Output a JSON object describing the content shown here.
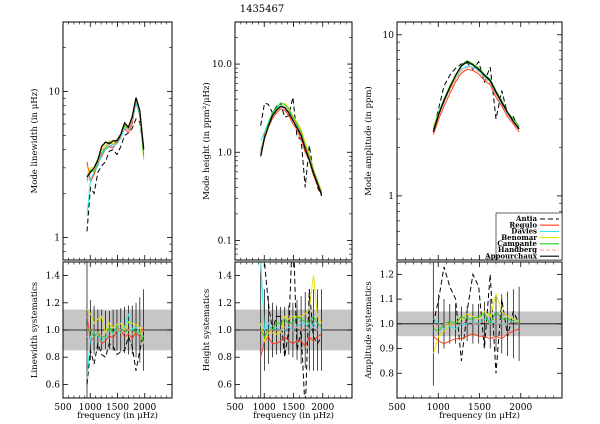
{
  "title": "1435467",
  "xlabel": "frequency (in μHz)",
  "x_ticks": [
    500,
    1000,
    1500,
    2000
  ],
  "colors": {
    "Antia": "#000000",
    "Regulo": "#ff3b1a",
    "Davies": "#33e5f0",
    "Benomar": "#e6e600",
    "Campante": "#22cc22",
    "Handberg": "#ff9a8a",
    "Appourchaux": "#000000"
  },
  "legend": [
    "Antia",
    "Regulo",
    "Davies",
    "Benomar",
    "Campante",
    "Handberg",
    "Appourchaux"
  ],
  "chart_data": [
    {
      "type": "line",
      "panel": "linewidth",
      "ylabel": "Mode linewidth (in μHz)",
      "yscale": "log",
      "xlim": [
        500,
        2500
      ],
      "ylim": [
        0.7,
        30
      ],
      "y_ticks": [
        1,
        10
      ],
      "x": [
        940,
        1005,
        1070,
        1140,
        1210,
        1280,
        1350,
        1420,
        1490,
        1560,
        1630,
        1700,
        1770,
        1840,
        1910,
        1980
      ],
      "series": [
        {
          "name": "Antia",
          "values": [
            1.1,
            2.2,
            2.0,
            2.8,
            3.1,
            3.3,
            3.9,
            4.0,
            3.7,
            4.2,
            5.0,
            5.2,
            5.6,
            6.5,
            6.2,
            3.9
          ]
        },
        {
          "name": "Regulo",
          "values": [
            3.3,
            2.4,
            2.7,
            3.2,
            3.6,
            4.0,
            4.2,
            4.1,
            4.5,
            4.9,
            5.6,
            5.2,
            6.0,
            8.6,
            6.8,
            4.2
          ]
        },
        {
          "name": "Davies",
          "values": [
            1.4,
            2.5,
            2.8,
            3.1,
            3.7,
            4.0,
            4.3,
            4.2,
            4.4,
            4.8,
            5.6,
            5.5,
            6.3,
            8.2,
            6.9,
            3.8
          ]
        },
        {
          "name": "Benomar",
          "values": [
            2.7,
            3.0,
            3.0,
            3.5,
            4.0,
            4.3,
            4.6,
            4.4,
            4.7,
            5.1,
            5.9,
            5.7,
            6.5,
            8.9,
            7.3,
            3.4
          ]
        },
        {
          "name": "Campante",
          "values": [
            2.5,
            2.9,
            2.8,
            3.3,
            3.8,
            4.1,
            4.5,
            4.3,
            4.6,
            5.0,
            5.8,
            5.6,
            6.4,
            8.7,
            7.1,
            3.6
          ]
        },
        {
          "name": "Handberg",
          "values": [
            2.4,
            2.8,
            2.9,
            3.3,
            3.9,
            4.2,
            4.4,
            4.3,
            4.6,
            5.0,
            5.7,
            5.5,
            6.3,
            8.5,
            7.0,
            4.0
          ]
        },
        {
          "name": "Appourchaux",
          "values": [
            2.6,
            2.8,
            3.0,
            3.4,
            4.2,
            4.5,
            4.4,
            4.6,
            4.6,
            5.1,
            6.1,
            5.7,
            6.7,
            9.1,
            7.4,
            4.0
          ]
        }
      ]
    },
    {
      "type": "line",
      "panel": "height",
      "ylabel": "Mode height (in ppm²/μHz)",
      "yscale": "log",
      "xlim": [
        500,
        2500
      ],
      "ylim": [
        0.06,
        30
      ],
      "y_ticks": [
        0.1,
        1.0,
        10.0
      ],
      "x": [
        940,
        1005,
        1070,
        1140,
        1210,
        1280,
        1350,
        1420,
        1490,
        1560,
        1630,
        1700,
        1770,
        1840,
        1910,
        1980
      ],
      "series": [
        {
          "name": "Antia",
          "values": [
            2.0,
            3.6,
            3.5,
            2.8,
            3.3,
            3.6,
            2.5,
            2.6,
            4.2,
            1.5,
            1.4,
            0.4,
            1.2,
            0.6,
            0.4,
            0.32
          ]
        },
        {
          "name": "Regulo",
          "values": [
            0.95,
            1.6,
            1.9,
            2.4,
            2.8,
            3.1,
            3.0,
            2.6,
            2.1,
            1.8,
            1.4,
            1.0,
            0.8,
            0.55,
            0.42,
            0.33
          ]
        },
        {
          "name": "Davies",
          "values": [
            1.35,
            1.7,
            2.2,
            2.7,
            3.1,
            3.4,
            3.3,
            2.9,
            2.4,
            2.0,
            1.6,
            1.15,
            0.85,
            0.6,
            0.45,
            0.34
          ]
        },
        {
          "name": "Benomar",
          "values": [
            1.0,
            1.4,
            1.9,
            2.6,
            2.9,
            3.3,
            3.6,
            3.2,
            2.6,
            2.2,
            1.8,
            1.3,
            0.95,
            0.65,
            0.48,
            0.36
          ]
        },
        {
          "name": "Campante",
          "values": [
            1.05,
            1.5,
            2.1,
            2.8,
            3.2,
            3.6,
            3.5,
            3.1,
            2.5,
            2.1,
            1.7,
            1.2,
            0.9,
            0.63,
            0.47,
            0.35
          ]
        },
        {
          "name": "Handberg",
          "values": [
            1.0,
            1.5,
            2.0,
            2.6,
            3.0,
            3.3,
            3.3,
            2.9,
            2.4,
            2.0,
            1.6,
            1.15,
            0.85,
            0.6,
            0.45,
            0.34
          ]
        },
        {
          "name": "Appourchaux",
          "values": [
            0.9,
            1.45,
            1.95,
            2.6,
            3.0,
            3.3,
            3.2,
            2.8,
            2.3,
            1.9,
            1.55,
            1.1,
            0.82,
            0.58,
            0.44,
            0.33
          ]
        }
      ]
    },
    {
      "type": "line",
      "panel": "amplitude",
      "ylabel": "Mode amplitude (in ppm)",
      "yscale": "log",
      "xlim": [
        500,
        2500
      ],
      "ylim": [
        0.4,
        12
      ],
      "y_ticks": [
        1,
        10
      ],
      "x": [
        940,
        1005,
        1070,
        1140,
        1210,
        1280,
        1350,
        1420,
        1490,
        1560,
        1630,
        1700,
        1770,
        1840,
        1910,
        1980
      ],
      "series": [
        {
          "name": "Antia",
          "values": [
            2.5,
            3.5,
            4.8,
            5.6,
            6.2,
            6.6,
            6.7,
            6.1,
            6.8,
            5.1,
            6.3,
            3.0,
            4.5,
            3.2,
            3.1,
            2.6
          ]
        },
        {
          "name": "Regulo",
          "values": [
            2.4,
            3.0,
            3.6,
            4.3,
            5.1,
            5.8,
            6.1,
            6.0,
            5.7,
            5.2,
            4.9,
            4.1,
            3.6,
            3.1,
            2.8,
            2.5
          ]
        },
        {
          "name": "Davies",
          "values": [
            2.6,
            3.2,
            3.8,
            4.6,
            5.4,
            6.1,
            6.4,
            6.3,
            6.0,
            5.5,
            5.1,
            4.3,
            3.7,
            3.2,
            2.9,
            2.6
          ]
        },
        {
          "name": "Benomar",
          "values": [
            2.7,
            3.3,
            3.9,
            4.6,
            5.5,
            6.4,
            6.9,
            6.6,
            6.2,
            5.7,
            5.2,
            4.4,
            3.8,
            3.3,
            2.9,
            2.7
          ]
        },
        {
          "name": "Campante",
          "values": [
            2.6,
            3.3,
            4.0,
            4.8,
            5.6,
            6.5,
            6.9,
            6.6,
            6.2,
            5.7,
            5.3,
            4.5,
            3.9,
            3.3,
            3.0,
            2.7
          ]
        },
        {
          "name": "Handberg",
          "values": [
            2.5,
            3.2,
            3.8,
            4.5,
            5.3,
            6.0,
            6.3,
            6.2,
            5.9,
            5.4,
            5.0,
            4.3,
            3.7,
            3.2,
            2.9,
            2.6
          ]
        },
        {
          "name": "Appourchaux",
          "values": [
            2.5,
            3.2,
            3.9,
            4.7,
            5.6,
            6.4,
            6.8,
            6.5,
            6.1,
            5.6,
            5.2,
            4.4,
            3.8,
            3.3,
            2.9,
            2.6
          ]
        }
      ]
    },
    {
      "type": "line",
      "panel": "linewidth_systematics",
      "ylabel": "Linewidth systematics",
      "xlim": [
        500,
        2500
      ],
      "ylim": [
        0.5,
        1.5
      ],
      "y_ticks": [
        0.6,
        0.8,
        1.0,
        1.2,
        1.4
      ],
      "band": [
        0.85,
        1.15
      ],
      "x": [
        940,
        1005,
        1070,
        1140,
        1210,
        1280,
        1350,
        1420,
        1490,
        1560,
        1630,
        1700,
        1770,
        1840,
        1910,
        1980
      ],
      "errors": [
        0.5,
        0.22,
        0.18,
        0.15,
        0.15,
        0.14,
        0.14,
        0.15,
        0.15,
        0.16,
        0.17,
        0.18,
        0.18,
        0.2,
        0.24,
        0.3
      ],
      "series": [
        {
          "name": "Antia",
          "values": [
            0.6,
            0.85,
            0.75,
            0.9,
            0.82,
            0.8,
            0.9,
            0.88,
            0.82,
            0.84,
            0.85,
            0.95,
            0.88,
            0.7,
            0.85,
            0.98
          ]
        },
        {
          "name": "Regulo",
          "values": [
            1.1,
            0.92,
            0.95,
            0.98,
            0.9,
            0.92,
            0.96,
            0.94,
            1.0,
            1.0,
            0.95,
            0.97,
            0.94,
            0.98,
            0.95,
            1.02
          ]
        },
        {
          "name": "Davies",
          "values": [
            0.65,
            0.95,
            0.98,
            0.96,
            0.92,
            0.94,
            1.0,
            0.97,
            1.0,
            0.98,
            1.02,
            1.12,
            1.0,
            1.02,
            0.98,
            0.95
          ]
        },
        {
          "name": "Benomar",
          "values": [
            1.15,
            1.12,
            1.05,
            1.08,
            1.1,
            0.98,
            1.05,
            1.02,
            1.04,
            1.05,
            1.0,
            1.06,
            1.05,
            1.04,
            1.02,
            0.9
          ]
        },
        {
          "name": "Campante",
          "values": [
            1.0,
            1.0,
            0.95,
            0.98,
            0.95,
            0.95,
            1.02,
            0.98,
            1.02,
            1.0,
            0.98,
            1.0,
            1.0,
            0.98,
            0.98,
            0.92
          ]
        },
        {
          "name": "Handberg",
          "values": [
            0.95,
            0.98,
            1.0,
            0.97,
            0.96,
            0.96,
            1.0,
            0.97,
            1.01,
            1.0,
            0.98,
            1.0,
            0.97,
            0.98,
            0.97,
            1.0
          ]
        }
      ]
    },
    {
      "type": "line",
      "panel": "height_systematics",
      "ylabel": "Height systematics",
      "xlim": [
        500,
        2500
      ],
      "ylim": [
        0.5,
        1.5
      ],
      "y_ticks": [
        0.6,
        0.8,
        1.0,
        1.2,
        1.4
      ],
      "band": [
        0.85,
        1.15
      ],
      "x": [
        940,
        1005,
        1070,
        1140,
        1210,
        1280,
        1350,
        1420,
        1490,
        1560,
        1630,
        1700,
        1770,
        1840,
        1910,
        1980
      ],
      "errors": [
        0.6,
        0.3,
        0.25,
        0.2,
        0.18,
        0.17,
        0.17,
        0.18,
        0.2,
        0.22,
        0.25,
        0.28,
        0.3,
        0.3,
        0.3,
        0.3
      ],
      "series": [
        {
          "name": "Antia",
          "values": [
            1.6,
            1.5,
            1.2,
            1.0,
            1.1,
            1.1,
            0.8,
            1.0,
            1.8,
            0.85,
            1.0,
            0.4,
            1.3,
            0.95,
            0.9,
            0.95
          ]
        },
        {
          "name": "Regulo",
          "values": [
            0.8,
            0.92,
            0.95,
            0.9,
            0.9,
            0.92,
            0.95,
            0.92,
            0.9,
            0.92,
            0.92,
            0.88,
            0.95,
            0.92,
            0.95,
            0.97
          ]
        },
        {
          "name": "Davies",
          "values": [
            1.5,
            1.0,
            1.05,
            1.0,
            1.02,
            1.0,
            1.0,
            1.02,
            1.0,
            1.02,
            1.05,
            1.05,
            1.0,
            1.05,
            1.0,
            1.0
          ]
        },
        {
          "name": "Benomar",
          "values": [
            1.05,
            0.92,
            0.98,
            0.98,
            0.97,
            0.98,
            1.1,
            1.08,
            1.1,
            1.1,
            1.1,
            1.12,
            1.15,
            1.4,
            1.1,
            1.05
          ]
        },
        {
          "name": "Campante",
          "values": [
            1.0,
            0.95,
            1.0,
            1.0,
            1.05,
            1.05,
            1.08,
            1.05,
            1.05,
            1.1,
            1.08,
            1.06,
            1.05,
            1.1,
            1.05,
            1.02
          ]
        },
        {
          "name": "Handberg",
          "values": [
            1.0,
            0.97,
            1.0,
            0.98,
            1.0,
            1.0,
            1.02,
            1.0,
            1.0,
            1.02,
            1.0,
            1.02,
            1.0,
            1.02,
            1.0,
            1.0
          ]
        }
      ]
    },
    {
      "type": "line",
      "panel": "amplitude_systematics",
      "ylabel": "Amplitude systematics",
      "xlim": [
        500,
        2500
      ],
      "ylim": [
        0.7,
        1.25
      ],
      "y_ticks": [
        0.8,
        0.9,
        1.0,
        1.1,
        1.2
      ],
      "band": [
        0.95,
        1.05
      ],
      "x": [
        940,
        1005,
        1070,
        1140,
        1210,
        1280,
        1350,
        1420,
        1490,
        1560,
        1630,
        1700,
        1770,
        1840,
        1910,
        1980
      ],
      "errors": [
        0.25,
        0.12,
        0.1,
        0.08,
        0.08,
        0.07,
        0.07,
        0.08,
        0.08,
        0.09,
        0.1,
        0.11,
        0.12,
        0.13,
        0.14,
        0.15
      ],
      "series": [
        {
          "name": "Antia",
          "values": [
            1.0,
            1.1,
            1.23,
            1.15,
            1.1,
            0.85,
            1.05,
            1.2,
            1.15,
            0.9,
            1.2,
            0.8,
            1.1,
            0.95,
            1.05,
            1.0
          ]
        },
        {
          "name": "Regulo",
          "values": [
            0.95,
            0.93,
            0.92,
            0.93,
            0.94,
            0.94,
            0.95,
            0.96,
            0.95,
            0.95,
            0.94,
            0.95,
            0.94,
            0.96,
            0.97,
            0.98
          ]
        },
        {
          "name": "Davies",
          "values": [
            1.02,
            1.0,
            0.98,
            0.99,
            0.98,
            1.0,
            1.0,
            1.01,
            1.0,
            1.02,
            1.01,
            1.0,
            1.0,
            1.0,
            1.02,
            1.0
          ]
        },
        {
          "name": "Benomar",
          "values": [
            0.88,
            0.95,
            0.97,
            1.0,
            1.0,
            1.02,
            1.04,
            1.03,
            1.02,
            1.05,
            1.03,
            1.12,
            1.05,
            1.03,
            1.02,
            1.01
          ]
        },
        {
          "name": "Campante",
          "values": [
            0.98,
            0.97,
            1.0,
            1.01,
            1.0,
            1.03,
            1.02,
            1.02,
            1.03,
            1.04,
            1.0,
            1.05,
            1.02,
            1.02,
            1.01,
            1.0
          ]
        },
        {
          "name": "Handberg",
          "values": [
            1.0,
            0.99,
            1.0,
            1.0,
            0.99,
            1.0,
            1.01,
            1.0,
            1.0,
            1.01,
            1.0,
            1.0,
            1.0,
            1.0,
            1.01,
            1.0
          ]
        }
      ]
    }
  ]
}
